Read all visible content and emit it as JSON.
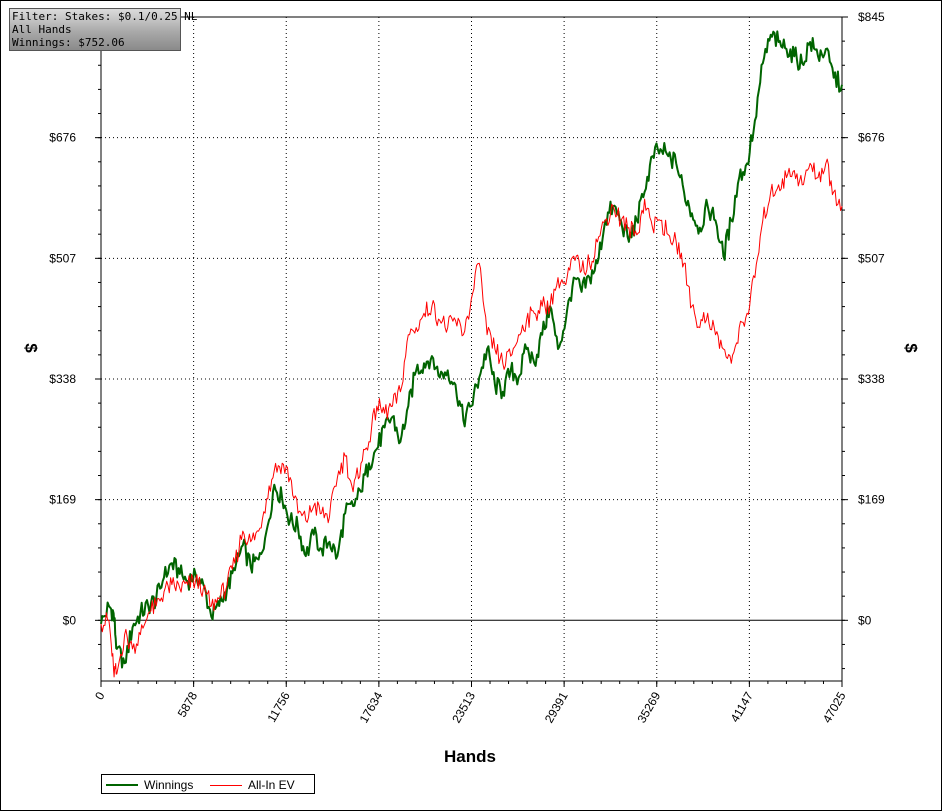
{
  "chart_data": {
    "type": "line",
    "xlabel": "Hands",
    "ylabel_left": "$",
    "ylabel_right": "$",
    "xlim": [
      0,
      47025
    ],
    "ylim": [
      -85,
      845
    ],
    "x_ticks": [
      "0",
      "5878",
      "11756",
      "17634",
      "23513",
      "29391",
      "35269",
      "41147",
      "47025"
    ],
    "y_ticks": [
      {
        "value": 845,
        "label": "$845"
      },
      {
        "value": 676,
        "label": "$676"
      },
      {
        "value": 507,
        "label": "$507"
      },
      {
        "value": 338,
        "label": "$338"
      },
      {
        "value": 169,
        "label": "$169"
      },
      {
        "value": 0,
        "label": "$0"
      }
    ],
    "grid": true,
    "legend_position": "bottom-left",
    "series": [
      {
        "name": "Winnings",
        "color": "#006400",
        "x": [
          0,
          500,
          800,
          1000,
          1500,
          2000,
          2500,
          3000,
          3500,
          4000,
          4500,
          5000,
          5500,
          6000,
          6500,
          7000,
          7500,
          8000,
          8500,
          9000,
          9500,
          10000,
          10500,
          11000,
          11500,
          12000,
          12500,
          13000,
          13500,
          14000,
          14500,
          15000,
          15500,
          16000,
          16500,
          17000,
          17500,
          18000,
          18500,
          19000,
          19500,
          20000,
          20500,
          21000,
          21500,
          22000,
          22500,
          23000,
          23500,
          24000,
          24500,
          25000,
          25500,
          26000,
          26500,
          27000,
          27500,
          28000,
          28500,
          29000,
          29500,
          30000,
          30500,
          31000,
          31500,
          32000,
          32500,
          33000,
          33500,
          34000,
          34500,
          35000,
          35500,
          36000,
          36500,
          37000,
          37500,
          38000,
          38500,
          39000,
          39500,
          40000,
          40500,
          41000,
          41500,
          42000,
          42500,
          43000,
          43500,
          44000,
          44500,
          45000,
          45500,
          46000,
          46500,
          47025
        ],
        "values": [
          -5,
          20,
          10,
          -40,
          -60,
          -10,
          10,
          20,
          30,
          60,
          80,
          65,
          55,
          65,
          50,
          5,
          20,
          45,
          70,
          105,
          75,
          85,
          125,
          190,
          170,
          140,
          130,
          90,
          120,
          100,
          110,
          90,
          150,
          160,
          180,
          220,
          240,
          270,
          285,
          250,
          300,
          350,
          360,
          370,
          340,
          350,
          330,
          280,
          300,
          340,
          380,
          330,
          320,
          350,
          340,
          380,
          360,
          400,
          440,
          380,
          420,
          480,
          460,
          480,
          500,
          560,
          580,
          560,
          530,
          560,
          600,
          650,
          660,
          650,
          640,
          600,
          570,
          550,
          580,
          560,
          510,
          560,
          620,
          640,
          700,
          780,
          820,
          810,
          800,
          790,
          780,
          810,
          790,
          800,
          760,
          750
        ]
      },
      {
        "name": "All-In EV",
        "color": "#ff0000",
        "x": [
          0,
          500,
          800,
          1000,
          1500,
          2000,
          2500,
          3000,
          3500,
          4000,
          4500,
          5000,
          5500,
          6000,
          6500,
          7000,
          7500,
          8000,
          8500,
          9000,
          9500,
          10000,
          10500,
          11000,
          11500,
          12000,
          12500,
          13000,
          13500,
          14000,
          14500,
          15000,
          15500,
          16000,
          16500,
          17000,
          17500,
          18000,
          18500,
          19000,
          19500,
          20000,
          20500,
          21000,
          21500,
          22000,
          22500,
          23000,
          23500,
          24000,
          24500,
          25000,
          25500,
          26000,
          26500,
          27000,
          27500,
          28000,
          28500,
          29000,
          29500,
          30000,
          30500,
          31000,
          31500,
          32000,
          32500,
          33000,
          33500,
          34000,
          34500,
          35000,
          35500,
          36000,
          36500,
          37000,
          37500,
          38000,
          38500,
          39000,
          39500,
          40000,
          40500,
          41000,
          41500,
          42000,
          42500,
          43000,
          43500,
          44000,
          44500,
          45000,
          45500,
          46000,
          46500,
          47025
        ],
        "values": [
          -5,
          0,
          -70,
          -75,
          -20,
          -40,
          -20,
          10,
          20,
          40,
          50,
          45,
          50,
          55,
          45,
          20,
          30,
          50,
          80,
          125,
          110,
          125,
          170,
          210,
          220,
          200,
          150,
          140,
          160,
          150,
          145,
          200,
          230,
          180,
          220,
          250,
          300,
          290,
          300,
          320,
          400,
          410,
          430,
          440,
          420,
          410,
          420,
          400,
          450,
          500,
          400,
          380,
          360,
          370,
          400,
          420,
          430,
          440,
          440,
          480,
          470,
          510,
          490,
          500,
          530,
          560,
          580,
          560,
          550,
          540,
          590,
          550,
          560,
          540,
          530,
          500,
          440,
          410,
          430,
          400,
          380,
          360,
          410,
          430,
          480,
          560,
          600,
          610,
          620,
          630,
          610,
          640,
          620,
          640,
          600,
          580
        ]
      }
    ]
  },
  "filter_box": {
    "lines": [
      "Filter: Stakes: $0.1/0.25 NL",
      "All Hands",
      "Winnings: $752.06"
    ]
  },
  "legend": {
    "items": [
      {
        "label": "Winnings",
        "color": "#006400"
      },
      {
        "label": "All-In EV",
        "color": "#ff0000"
      }
    ]
  }
}
